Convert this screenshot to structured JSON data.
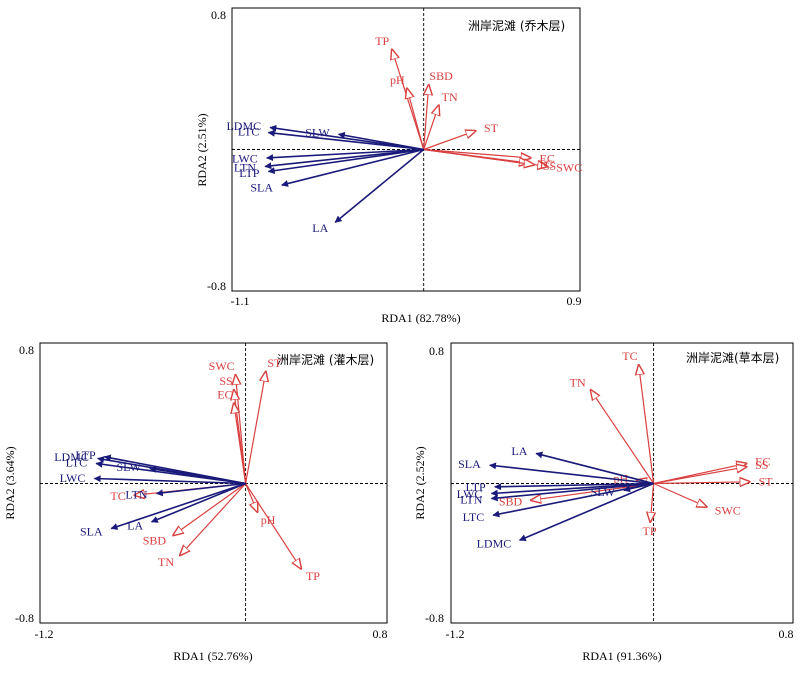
{
  "chart_data": [
    {
      "type": "biplot",
      "title": "洲岸泥滩 (乔木层)",
      "xlabel": "RDA1 (82.78%)",
      "ylabel": "RDA2 (2.51%)",
      "xlim": [
        -1.1,
        0.9
      ],
      "ylim": [
        -0.8,
        0.8
      ],
      "xtick_labels": [
        "-1.1",
        "0.9"
      ],
      "ytick_labels": [
        "0.8",
        "-0.8"
      ],
      "colors": {
        "trait": "#1a1a7a",
        "env": "#d94040"
      },
      "traits": [
        {
          "label": "LDMC",
          "x": -0.92,
          "y": 0.13
        },
        {
          "label": "LTC",
          "x": -0.93,
          "y": 0.1
        },
        {
          "label": "SLW",
          "x": -0.51,
          "y": 0.09
        },
        {
          "label": "LWC",
          "x": -0.94,
          "y": -0.05
        },
        {
          "label": "LTN",
          "x": -0.95,
          "y": -0.1
        },
        {
          "label": "LTP",
          "x": -0.93,
          "y": -0.13
        },
        {
          "label": "SLA",
          "x": -0.85,
          "y": -0.21
        },
        {
          "label": "LA",
          "x": -0.53,
          "y": -0.43
        }
      ],
      "env": [
        {
          "label": "TP",
          "x": -0.19,
          "y": 0.59
        },
        {
          "label": "pH",
          "x": -0.1,
          "y": 0.36
        },
        {
          "label": "SBD",
          "x": 0.03,
          "y": 0.38
        },
        {
          "label": "TN",
          "x": 0.09,
          "y": 0.26
        },
        {
          "label": "ST",
          "x": 0.31,
          "y": 0.11
        },
        {
          "label": "EC",
          "x": 0.64,
          "y": -0.05
        },
        {
          "label": "SWC",
          "x": 0.74,
          "y": -0.1
        },
        {
          "label": "TC",
          "x": 0.63,
          "y": -0.08
        },
        {
          "label": "SS",
          "x": 0.66,
          "y": -0.09
        }
      ]
    },
    {
      "type": "biplot",
      "title": "洲岸泥滩 (灌木层)",
      "xlabel": "RDA1 (52.76%)",
      "ylabel": "RDA2 (3.64%)",
      "xlim": [
        -1.2,
        0.8
      ],
      "ylim": [
        -0.8,
        0.8
      ],
      "xtick_labels": [
        "-1.2",
        "0.8"
      ],
      "ytick_labels": [
        "0.8",
        "-0.8"
      ],
      "colors": {
        "trait": "#1a1a7a",
        "env": "#d94040"
      },
      "traits": [
        {
          "label": "LTP",
          "x": -0.84,
          "y": 0.16
        },
        {
          "label": "LDMC",
          "x": -0.88,
          "y": 0.15
        },
        {
          "label": "LTC",
          "x": -0.89,
          "y": 0.12
        },
        {
          "label": "SLW",
          "x": -0.57,
          "y": 0.09
        },
        {
          "label": "LWC",
          "x": -0.9,
          "y": 0.03
        },
        {
          "label": "LTN",
          "x": -0.53,
          "y": -0.06
        },
        {
          "label": "LA",
          "x": -0.56,
          "y": -0.23
        },
        {
          "label": "SLA",
          "x": -0.8,
          "y": -0.27
        }
      ],
      "env": [
        {
          "label": "SWC",
          "x": -0.06,
          "y": 0.65
        },
        {
          "label": "ST",
          "x": 0.12,
          "y": 0.67
        },
        {
          "label": "SS",
          "x": -0.07,
          "y": 0.56
        },
        {
          "label": "EC",
          "x": -0.07,
          "y": 0.48
        },
        {
          "label": "TC",
          "x": -0.66,
          "y": -0.07
        },
        {
          "label": "pH",
          "x": 0.07,
          "y": -0.17
        },
        {
          "label": "SBD",
          "x": -0.43,
          "y": -0.31
        },
        {
          "label": "TN",
          "x": -0.39,
          "y": -0.43
        },
        {
          "label": "TP",
          "x": 0.33,
          "y": -0.51
        }
      ]
    },
    {
      "type": "biplot",
      "title": "洲岸泥滩(草本层)",
      "xlabel": "RDA1 (91.36%)",
      "ylabel": "RDA2 (2.52%)",
      "xlim": [
        -1.2,
        0.8
      ],
      "ylim": [
        -0.8,
        0.8
      ],
      "xtick_labels": [
        "-1.2",
        "0.8"
      ],
      "ytick_labels": [
        "0.8",
        "-0.8"
      ],
      "colors": {
        "trait": "#1a1a7a",
        "env": "#d94040"
      },
      "traits": [
        {
          "label": "LA",
          "x": -0.71,
          "y": 0.18
        },
        {
          "label": "SLA",
          "x": -0.99,
          "y": 0.11
        },
        {
          "label": "LTP",
          "x": -0.96,
          "y": -0.02
        },
        {
          "label": "LWC",
          "x": -0.98,
          "y": -0.06
        },
        {
          "label": "LTN",
          "x": -0.98,
          "y": -0.09
        },
        {
          "label": "LTC",
          "x": -0.97,
          "y": -0.19
        },
        {
          "label": "LDMC",
          "x": -0.81,
          "y": -0.34
        },
        {
          "label": "SLW",
          "x": -0.18,
          "y": -0.04
        }
      ],
      "env": [
        {
          "label": "TC",
          "x": -0.09,
          "y": 0.71
        },
        {
          "label": "TN",
          "x": -0.38,
          "y": 0.56
        },
        {
          "label": "pH",
          "x": -0.1,
          "y": 0.02
        },
        {
          "label": "SBD",
          "x": -0.74,
          "y": -0.1
        },
        {
          "label": "TP",
          "x": -0.02,
          "y": -0.23
        },
        {
          "label": "EC",
          "x": 0.56,
          "y": 0.12
        },
        {
          "label": "SS",
          "x": 0.56,
          "y": 0.1
        },
        {
          "label": "ST",
          "x": 0.58,
          "y": 0.01
        },
        {
          "label": "SWC",
          "x": 0.32,
          "y": -0.14
        }
      ]
    }
  ]
}
